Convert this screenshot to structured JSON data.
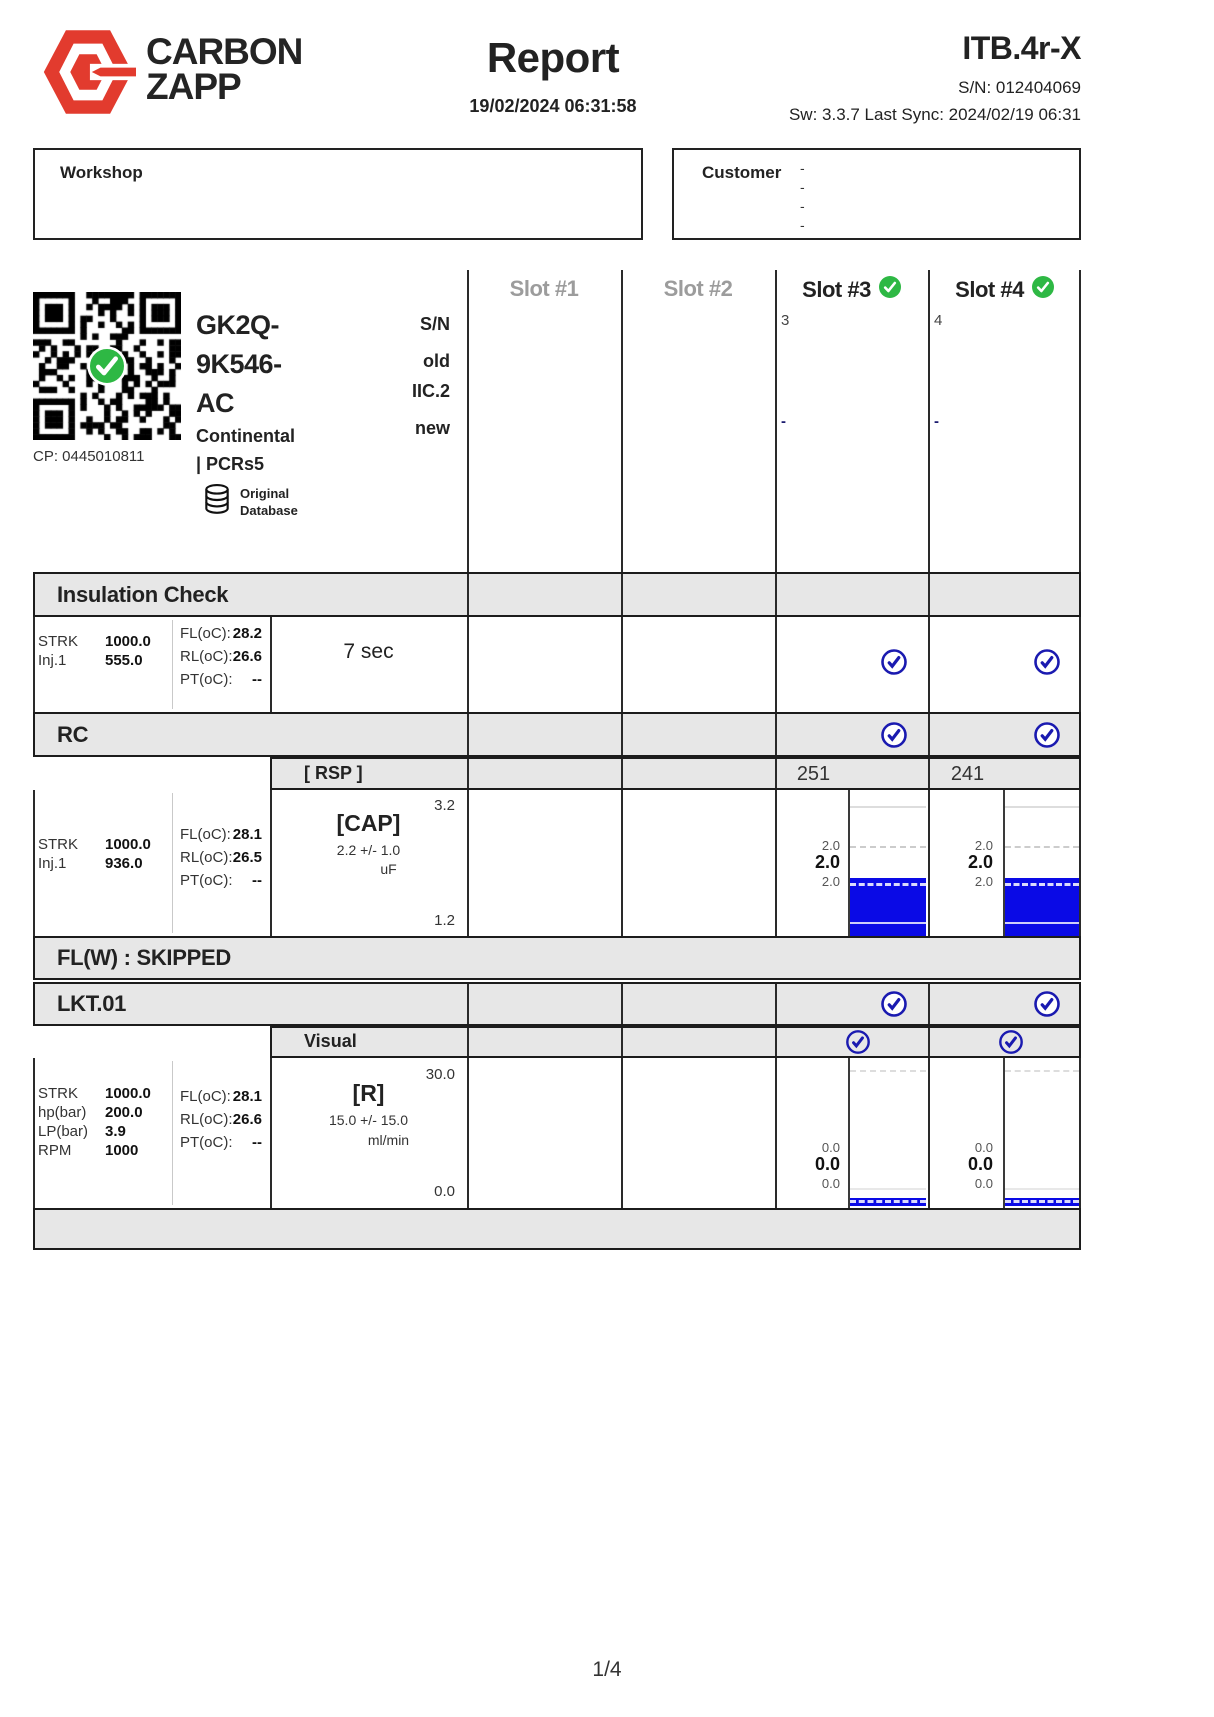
{
  "colors": {
    "brand_red": "#e23b2e",
    "header_gray": "#e7e7e7",
    "bar_blue": "#0a0ae6",
    "check_blue": "#1a1ab0",
    "check_green": "#2eb844",
    "inactive_slot_gray": "#9c9c9c"
  },
  "header": {
    "brand_top": "CARBON",
    "brand_bottom": "ZAPP",
    "title": "Report",
    "datetime": "19/02/2024 06:31:58",
    "device_model": "ITB.4r-X",
    "device_serial": "S/N: 012404069",
    "sw_sync": "Sw: 3.3.7 Last Sync: 2024/02/19 06:31"
  },
  "workshop": {
    "label": "Workshop"
  },
  "customer": {
    "label": "Customer",
    "dashes": [
      "-",
      "-",
      "-",
      "-"
    ]
  },
  "injector": {
    "qr_caption": "CP: 0445010811",
    "code_line1": "GK2Q-",
    "code_line2": "9K546-",
    "code_line3": "AC",
    "manufacturer": "Continental",
    "series": "| PCRs5",
    "db_line1": "Original",
    "db_line2": "Database",
    "col_sn": "S/N",
    "col_old": "old",
    "col_iic": "IIC.2",
    "col_new": "new"
  },
  "slots": [
    {
      "label": "Slot #1",
      "active": false,
      "checked": false,
      "number": "",
      "dash": ""
    },
    {
      "label": "Slot #2",
      "active": false,
      "checked": false,
      "number": "",
      "dash": ""
    },
    {
      "label": "Slot #3",
      "active": true,
      "checked": true,
      "number": "3",
      "dash": "-"
    },
    {
      "label": "Slot #4",
      "active": true,
      "checked": true,
      "number": "4",
      "dash": "-"
    }
  ],
  "insulation": {
    "title": "Insulation Check",
    "param_labels": [
      "STRK",
      "Inj.1"
    ],
    "param_values": [
      "1000.0",
      "555.0"
    ],
    "temp_labels": [
      "FL(oC):",
      "RL(oC):",
      "PT(oC):"
    ],
    "temp_values": [
      "28.2",
      "26.6",
      "--"
    ],
    "spec": "7 sec",
    "slot3_passed": true,
    "slot4_passed": true
  },
  "rc": {
    "title": "RC",
    "subtest": "[ RSP ]",
    "rsp_slot3": "251",
    "rsp_slot4": "241",
    "param_labels": [
      "STRK",
      "Inj.1"
    ],
    "param_values": [
      "1000.0",
      "936.0"
    ],
    "temp_labels": [
      "FL(oC):",
      "RL(oC):",
      "PT(oC):"
    ],
    "temp_values": [
      "28.1",
      "26.5",
      "--"
    ],
    "measure": "[CAP]",
    "tolerance": "2.2 +/- 1.0",
    "unit": "uF",
    "scale_max": "3.2",
    "scale_min": "1.2",
    "slot3_values": [
      "2.0",
      "2.0",
      "2.0"
    ],
    "slot4_values": [
      "2.0",
      "2.0",
      "2.0"
    ],
    "slot3_passed": true,
    "slot4_passed": true
  },
  "flw": {
    "title": "FL(W) : SKIPPED"
  },
  "lkt": {
    "title": "LKT.01",
    "subtest": "Visual",
    "param_labels": [
      "STRK",
      "hp(bar)",
      "LP(bar)",
      "RPM"
    ],
    "param_values": [
      "1000.0",
      "200.0",
      "3.9",
      "1000"
    ],
    "temp_labels": [
      "FL(oC):",
      "RL(oC):",
      "PT(oC):"
    ],
    "temp_values": [
      "28.1",
      "26.6",
      "--"
    ],
    "measure": "[R]",
    "tolerance": "15.0 +/- 15.0",
    "unit": "ml/min",
    "scale_max": "30.0",
    "scale_min": "0.0",
    "slot3_values": [
      "0.0",
      "0.0",
      "0.0"
    ],
    "slot4_values": [
      "0.0",
      "0.0",
      "0.0"
    ],
    "slot3_passed": true,
    "slot4_passed": true,
    "visual_slot3_passed": true,
    "visual_slot4_passed": true
  },
  "footer": {
    "page": "1/4"
  },
  "chart_data": [
    {
      "type": "bar",
      "title": "RC [CAP]",
      "unit": "uF",
      "ylim": [
        1.2,
        3.2
      ],
      "nominal": 2.2,
      "tolerance": 1.0,
      "categories": [
        "Slot #3",
        "Slot #4"
      ],
      "values": [
        2.0,
        2.0
      ],
      "series": [
        {
          "name": "Slot #3",
          "min": 2.0,
          "avg": 2.0,
          "max": 2.0
        },
        {
          "name": "Slot #4",
          "min": 2.0,
          "avg": 2.0,
          "max": 2.0
        }
      ]
    },
    {
      "type": "bar",
      "title": "LKT.01 [R] Visual",
      "unit": "ml/min",
      "ylim": [
        0.0,
        30.0
      ],
      "nominal": 15.0,
      "tolerance": 15.0,
      "categories": [
        "Slot #3",
        "Slot #4"
      ],
      "values": [
        0.0,
        0.0
      ],
      "series": [
        {
          "name": "Slot #3",
          "min": 0.0,
          "avg": 0.0,
          "max": 0.0
        },
        {
          "name": "Slot #4",
          "min": 0.0,
          "avg": 0.0,
          "max": 0.0
        }
      ]
    }
  ]
}
